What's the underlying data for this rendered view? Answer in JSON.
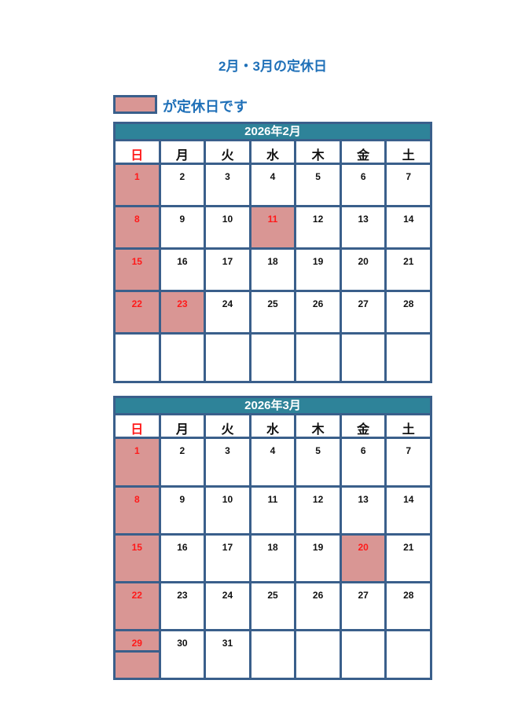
{
  "title": "2月・3月の定休日",
  "legend": {
    "text": "が定休日です",
    "color": "#d99694"
  },
  "weekdays": [
    "日",
    "月",
    "火",
    "水",
    "木",
    "金",
    "土"
  ],
  "calendars": [
    {
      "title": "2026年2月",
      "weeks": [
        [
          "1",
          "2",
          "3",
          "4",
          "5",
          "6",
          "7"
        ],
        [
          "8",
          "9",
          "10",
          "11",
          "12",
          "13",
          "14"
        ],
        [
          "15",
          "16",
          "17",
          "18",
          "19",
          "20",
          "21"
        ],
        [
          "22",
          "23",
          "24",
          "25",
          "26",
          "27",
          "28"
        ],
        [
          "",
          "",
          "",
          "",
          "",
          "",
          ""
        ]
      ],
      "holidays": [
        "1",
        "8",
        "11",
        "15",
        "22",
        "23"
      ]
    },
    {
      "title": "2026年3月",
      "weeks": [
        [
          "1",
          "2",
          "3",
          "4",
          "5",
          "6",
          "7"
        ],
        [
          "8",
          "9",
          "10",
          "11",
          "12",
          "13",
          "14"
        ],
        [
          "15",
          "16",
          "17",
          "18",
          "19",
          "20",
          "21"
        ],
        [
          "22",
          "23",
          "24",
          "25",
          "26",
          "27",
          "28"
        ],
        [
          "29",
          "30",
          "31",
          "",
          "",
          "",
          ""
        ]
      ],
      "holidays": [
        "1",
        "8",
        "15",
        "20",
        "22",
        "29"
      ]
    }
  ]
}
